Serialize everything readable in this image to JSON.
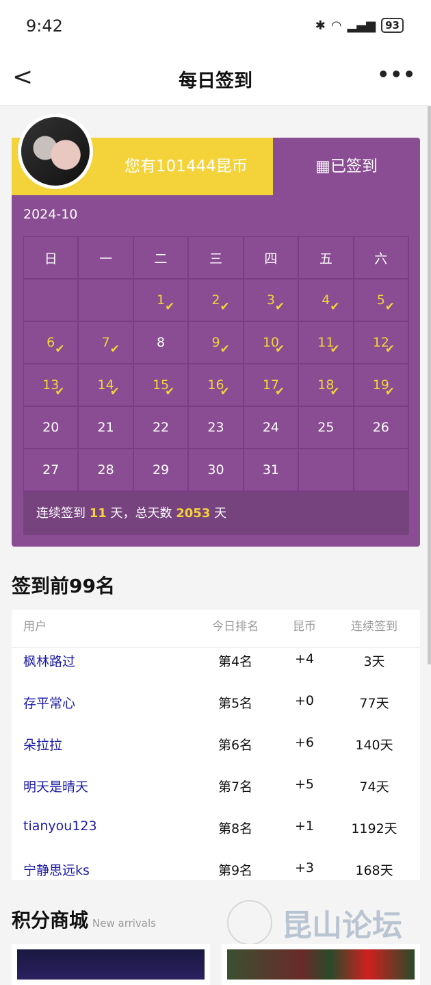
{
  "status": {
    "time": "9:42",
    "battery": "93"
  },
  "nav": {
    "title": "每日签到",
    "back": "<",
    "more": "•••"
  },
  "header": {
    "coins_text": "您有101444昆币",
    "signed_label": "已签到",
    "month": "2024-10"
  },
  "calendar": {
    "weekdays": [
      "日",
      "一",
      "二",
      "三",
      "四",
      "五",
      "六"
    ],
    "leading_blanks": 2,
    "days": [
      1,
      2,
      3,
      4,
      5,
      6,
      7,
      8,
      9,
      10,
      11,
      12,
      13,
      14,
      15,
      16,
      17,
      18,
      19,
      20,
      21,
      22,
      23,
      24,
      25,
      26,
      27,
      28,
      29,
      30,
      31
    ],
    "checked": [
      1,
      2,
      3,
      4,
      5,
      6,
      7,
      9,
      10,
      11,
      12,
      13,
      14,
      15,
      16,
      17,
      18,
      19
    ],
    "accent": "#f4d33a",
    "bg": "#8a4d93"
  },
  "summary": {
    "prefix": "连续签到 ",
    "streak": "11",
    "mid": " 天，总天数 ",
    "total": "2053",
    "suffix": " 天"
  },
  "ranking": {
    "title": "签到前99名",
    "columns": [
      "用户",
      "今日排名",
      "昆币",
      "连续签到"
    ],
    "rows": [
      {
        "user": "枫林路过",
        "rank": "第4名",
        "coins": "+4",
        "streak": "3天"
      },
      {
        "user": "存平常心",
        "rank": "第5名",
        "coins": "+0",
        "streak": "77天"
      },
      {
        "user": "朵拉拉",
        "rank": "第6名",
        "coins": "+6",
        "streak": "140天"
      },
      {
        "user": "明天是晴天",
        "rank": "第7名",
        "coins": "+5",
        "streak": "74天"
      },
      {
        "user": "tianyou123",
        "rank": "第8名",
        "coins": "+1",
        "streak": "1192天"
      },
      {
        "user": "宁静思远ks",
        "rank": "第9名",
        "coins": "+3",
        "streak": "168天"
      }
    ]
  },
  "shop": {
    "title": "积分商城",
    "subtitle": "New arrivals"
  },
  "watermark": "昆山论坛"
}
